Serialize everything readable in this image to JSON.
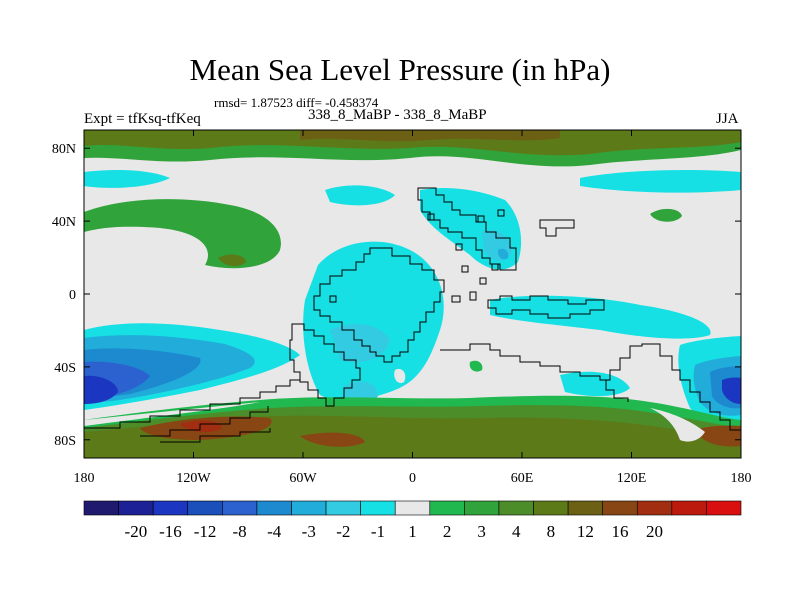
{
  "title": "Mean Sea Level Pressure (in hPa)",
  "stats": "rmsd= 1.87523 diff= -0.458374",
  "left_label": "Expt = tfKsq-tfKeq",
  "center_label": "338_8_MaBP - 338_8_MaBP",
  "right_label": "JJA",
  "map": {
    "lat_ticks": [
      "80N",
      "40N",
      "0",
      "40S",
      "80S"
    ],
    "lon_ticks": [
      "180",
      "120W",
      "60W",
      "0",
      "60E",
      "120E",
      "180"
    ]
  },
  "colorbar": {
    "colors": [
      "#1f1a6e",
      "#1d2196",
      "#1b36c0",
      "#1b4fb9",
      "#2b62cf",
      "#1d8ad0",
      "#21acd9",
      "#33cbe2",
      "#17e0e4",
      "#e8e8e8",
      "#20b84f",
      "#31a33b",
      "#4c8d2a",
      "#5d7a18",
      "#6b6014",
      "#874613",
      "#a22e12",
      "#bd1a0e",
      "#d90f0f"
    ],
    "labels": [
      "-20",
      "-16",
      "-12",
      "-8",
      "-4",
      "-3",
      "-2",
      "-1",
      "1",
      "2",
      "3",
      "4",
      "8",
      "12",
      "16",
      "20"
    ]
  }
}
